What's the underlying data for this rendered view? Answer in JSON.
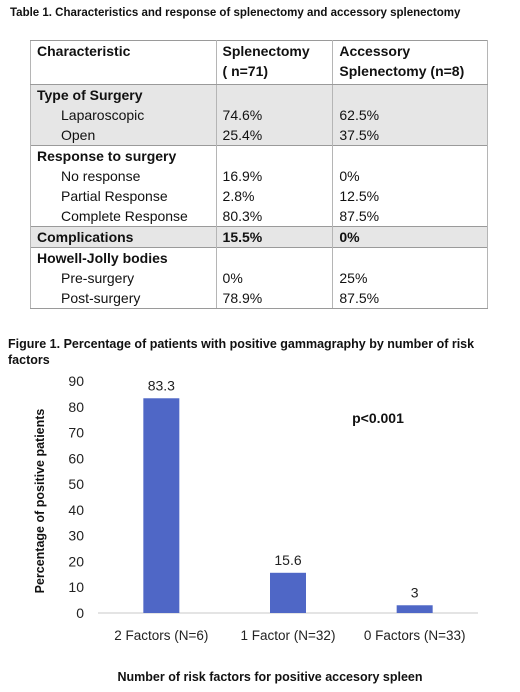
{
  "table": {
    "caption": "Table 1. Characteristics and response of splenectomy and accessory splenectomy",
    "headers": [
      "Characteristic",
      "Splenectomy\n( n=71)",
      "Accessory\nSplenectomy (n=8)"
    ],
    "rows": [
      {
        "kind": "section",
        "shade": true,
        "label": "Type of Surgery",
        "c2": "",
        "c3": ""
      },
      {
        "kind": "item",
        "shade": true,
        "label": "Laparoscopic",
        "c2": "74.6%",
        "c3": "62.5%"
      },
      {
        "kind": "item",
        "shade": true,
        "label": "Open",
        "c2": "25.4%",
        "c3": "37.5%"
      },
      {
        "kind": "section",
        "shade": false,
        "label": "Response to surgery",
        "c2": "",
        "c3": ""
      },
      {
        "kind": "item",
        "shade": false,
        "label": "No response",
        "c2": "16.9%",
        "c3": "0%"
      },
      {
        "kind": "item",
        "shade": false,
        "label": "Partial Response",
        "c2": "2.8%",
        "c3": "12.5%"
      },
      {
        "kind": "item",
        "shade": false,
        "label": "Complete Response",
        "c2": "80.3%",
        "c3": "87.5%"
      },
      {
        "kind": "section",
        "shade": true,
        "label": "Complications",
        "c2": "15.5%",
        "c3": "0%"
      },
      {
        "kind": "section",
        "shade": false,
        "label": "Howell-Jolly bodies",
        "c2": "",
        "c3": ""
      },
      {
        "kind": "item",
        "shade": false,
        "label": "Pre-surgery",
        "c2": "0%",
        "c3": "25%"
      },
      {
        "kind": "item",
        "shade": false,
        "label": "Post-surgery",
        "c2": "78.9%",
        "c3": "87.5%"
      }
    ]
  },
  "figure": {
    "caption": "Figure 1. Percentage of patients with positive gammagraphy by number of risk factors"
  },
  "chart_data": {
    "type": "bar",
    "title": "",
    "categories": [
      "2 Factors (N=6)",
      "1 Factor (N=32)",
      "0 Factors (N=33)"
    ],
    "values": [
      83.3,
      15.6,
      3
    ],
    "data_labels": [
      "83.3",
      "15.6",
      "3"
    ],
    "ylim": [
      0,
      90
    ],
    "yticks": [
      0,
      10,
      20,
      30,
      40,
      50,
      60,
      70,
      80,
      90
    ],
    "xlabel": "Number of risk factors for positive accesory spleen",
    "ylabel": "Percentage of positive patients",
    "annotation": "p<0.001",
    "bar_color": "#4f67c6",
    "grid": false,
    "legend": "none"
  }
}
